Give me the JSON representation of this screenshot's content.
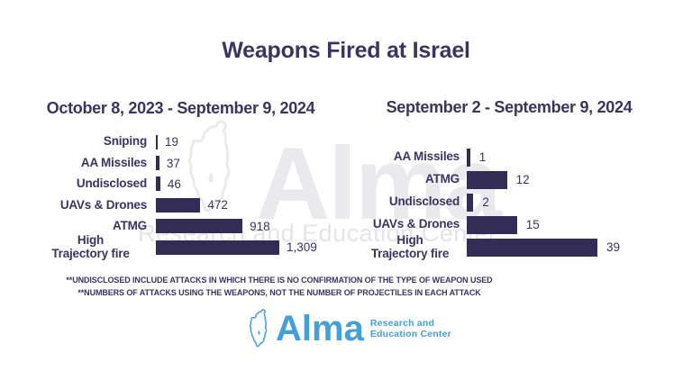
{
  "title": "Weapons Fired at Israel",
  "colors": {
    "ink": "#3a3462",
    "bar": "#332c55",
    "logo_blue": "#459fd8",
    "watermark_gray": "#e9e9ee",
    "background": "#ffffff"
  },
  "chart_data": [
    {
      "type": "bar",
      "orientation": "horizontal",
      "title": "October 8, 2023 - September 9, 2024",
      "categories": [
        "Sniping",
        "AA Missiles",
        "Undisclosed",
        "UAVs & Drones",
        "ATMG",
        "High Trajectory fire"
      ],
      "category_display": [
        "Sniping",
        "AA Missiles",
        "Undisclosed",
        "UAVs & Drones",
        "ATMG",
        "High\nTrajectory fire"
      ],
      "values": [
        19,
        37,
        46,
        472,
        918,
        1309
      ],
      "value_labels": [
        "19",
        "37",
        "46",
        "472",
        "918",
        "1,309"
      ],
      "xlim": [
        0,
        1309
      ],
      "grid": false,
      "legend": "none"
    },
    {
      "type": "bar",
      "orientation": "horizontal",
      "title": "September 2 - September 9, 2024",
      "categories": [
        "AA Missiles",
        "ATMG",
        "Undisclosed",
        "UAVs & Drones",
        "High Trajectory fire"
      ],
      "category_display": [
        "AA Missiles",
        "ATMG",
        "Undisclosed",
        "UAVs & Drones",
        "High\nTrajectory fire"
      ],
      "values": [
        1,
        12,
        2,
        15,
        39
      ],
      "value_labels": [
        "1",
        "12",
        "2",
        "15",
        "39"
      ],
      "xlim": [
        0,
        39
      ],
      "grid": false,
      "legend": "none"
    }
  ],
  "footnotes": [
    "**UNDISCLOSED INCLUDE ATTACKS IN WHICH THERE IS NO CONFIRMATION OF THE TYPE OF WEAPON USED",
    "**NUMBERS OF ATTACKS USING THE WEAPONS, NOT THE NUMBER OF PROJECTILES IN EACH ATTACK"
  ],
  "watermark": {
    "word": "Alma",
    "subtext": "Research and Education Center"
  },
  "logo": {
    "word": "Alma",
    "tagline_line1": "Research and",
    "tagline_line2": "Education Center"
  }
}
